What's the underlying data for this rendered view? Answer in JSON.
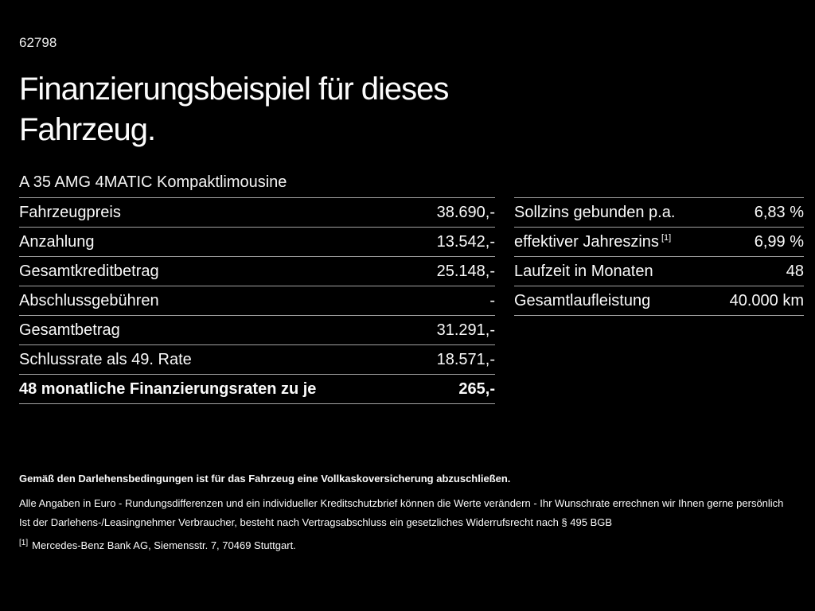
{
  "page": {
    "doc_number": "62798",
    "title_lines": [
      "Finanzierungsbeispiel für dieses",
      "Fahrzeug."
    ],
    "vehicle_name": "A 35 AMG 4MATIC Kompaktlimousine"
  },
  "left_table": {
    "rows": [
      {
        "label": "Fahrzeugpreis",
        "value": "38.690,-"
      },
      {
        "label": "Anzahlung",
        "value": "13.542,-"
      },
      {
        "label": "Gesamtkreditbetrag",
        "value": "25.148,-"
      },
      {
        "label": "Abschlussgebühren",
        "value": "-"
      },
      {
        "label": "Gesamtbetrag",
        "value": "31.291,-"
      },
      {
        "label": "Schlussrate als 49. Rate",
        "value": "18.571,-"
      },
      {
        "label": "48 monatliche Finanzierungsraten zu je",
        "value": "265,-"
      }
    ]
  },
  "right_table": {
    "rows": [
      {
        "label": "Sollzins gebunden p.a.",
        "value": "6,83 %"
      },
      {
        "label": "effektiver Jahreszins",
        "sup": "[1]",
        "value": "6,99 %"
      },
      {
        "label": "Laufzeit in Monaten",
        "value": "48"
      },
      {
        "label": "Gesamtlaufleistung",
        "value": "40.000 km"
      }
    ]
  },
  "footer": {
    "insurance_note": "Gemäß den Darlehensbedingungen ist für das Fahrzeug eine Vollkaskoversicherung abzuschließen.",
    "note_line1": "Alle Angaben in Euro - Rundungsdifferenzen und ein individueller Kreditschutzbrief können die Werte verändern - Ihr Wunschrate errechnen wir Ihnen gerne persönlich",
    "note_line2": "Ist der Darlehens-/Leasingnehmer Verbraucher, besteht nach Vertragsabschluss ein gesetzliches Widerrufsrecht nach § 495 BGB",
    "footnote_marker": "[1]",
    "footnote_text": "Mercedes-Benz Bank AG, Siemensstr. 7, 70469 Stuttgart."
  },
  "colors": {
    "background": "#000000",
    "text": "#fafafa",
    "divider": "#a3a3a3"
  }
}
